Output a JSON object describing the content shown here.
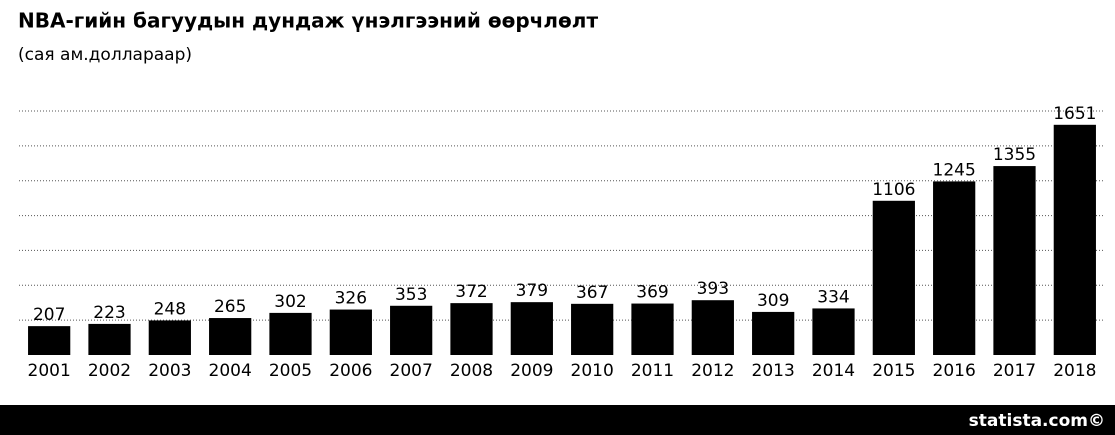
{
  "chart_data": {
    "type": "bar",
    "title": "NBA-гийн багуудын дундаж үнэлгээний өөрчлөлт",
    "subtitle": "(сая ам.доллараар)",
    "source": "statista.com©",
    "categories": [
      "2001",
      "2002",
      "2003",
      "2004",
      "2005",
      "2006",
      "2007",
      "2008",
      "2009",
      "2010",
      "2011",
      "2012",
      "2013",
      "2014",
      "2015",
      "2016",
      "2017",
      "2018"
    ],
    "values": [
      207,
      223,
      248,
      265,
      302,
      326,
      353,
      372,
      379,
      367,
      369,
      393,
      309,
      334,
      1106,
      1245,
      1355,
      1651
    ],
    "color": "#000000",
    "ylim": [
      0,
      1750
    ],
    "yticks": [
      250,
      500,
      750,
      1000,
      1250,
      1500,
      1750
    ],
    "grid": true
  }
}
